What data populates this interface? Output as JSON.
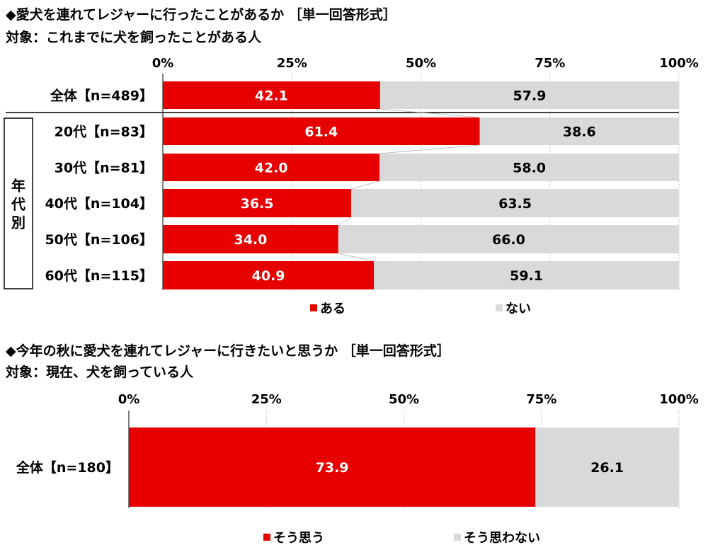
{
  "colors": {
    "yes": "#e60000",
    "no": "#d9d9d9",
    "grid": "#bfbfbf",
    "text": "#000000"
  },
  "chart1": {
    "title": "◆愛犬を連れてレジャーに行ったことがあるか ［単一回答形式］",
    "subtitle": "対象：これまでに犬を飼ったことがある人"
  },
  "chart2": {
    "title": "◆今年の秋に愛犬を連れてレジャーに行きたいと思うか ［単一回答形式］",
    "subtitle": "対象：現在、犬を飼っている人"
  },
  "chart_data": [
    {
      "type": "bar",
      "orientation": "horizontal",
      "stacked": true,
      "title": "◆愛犬を連れてレジャーに行ったことがあるか ［単一回答形式］",
      "subtitle": "対象：これまでに犬を飼ったことがある人",
      "x_ticks": [
        "0%",
        "25%",
        "50%",
        "75%",
        "100%"
      ],
      "xlim": [
        0,
        100
      ],
      "categories": [
        "全体【n=489】",
        "20代【n=83】",
        "30代【n=81】",
        "40代【n=104】",
        "50代【n=106】",
        "60代【n=115】"
      ],
      "group_label": "年代別",
      "series": [
        {
          "name": "ある",
          "values": [
            42.1,
            61.4,
            42.0,
            36.5,
            34.0,
            40.9
          ]
        },
        {
          "name": "ない",
          "values": [
            57.9,
            38.6,
            58.0,
            63.5,
            66.0,
            59.1
          ]
        }
      ],
      "value_labels": [
        [
          "42.1",
          "61.4",
          "42.0",
          "36.5",
          "34.0",
          "40.9"
        ],
        [
          "57.9",
          "38.6",
          "58.0",
          "63.5",
          "66.0",
          "59.1"
        ]
      ],
      "legend": "bottom"
    },
    {
      "type": "bar",
      "orientation": "horizontal",
      "stacked": true,
      "title": "◆今年の秋に愛犬を連れてレジャーに行きたいと思うか ［単一回答形式］",
      "subtitle": "対象：現在、犬を飼っている人",
      "x_ticks": [
        "0%",
        "25%",
        "50%",
        "75%",
        "100%"
      ],
      "xlim": [
        0,
        100
      ],
      "categories": [
        "全体【n=180】"
      ],
      "series": [
        {
          "name": "そう思う",
          "values": [
            73.9
          ]
        },
        {
          "name": "そう思わない",
          "values": [
            26.1
          ]
        }
      ],
      "value_labels": [
        [
          "73.9"
        ],
        [
          "26.1"
        ]
      ],
      "legend": "bottom"
    }
  ]
}
